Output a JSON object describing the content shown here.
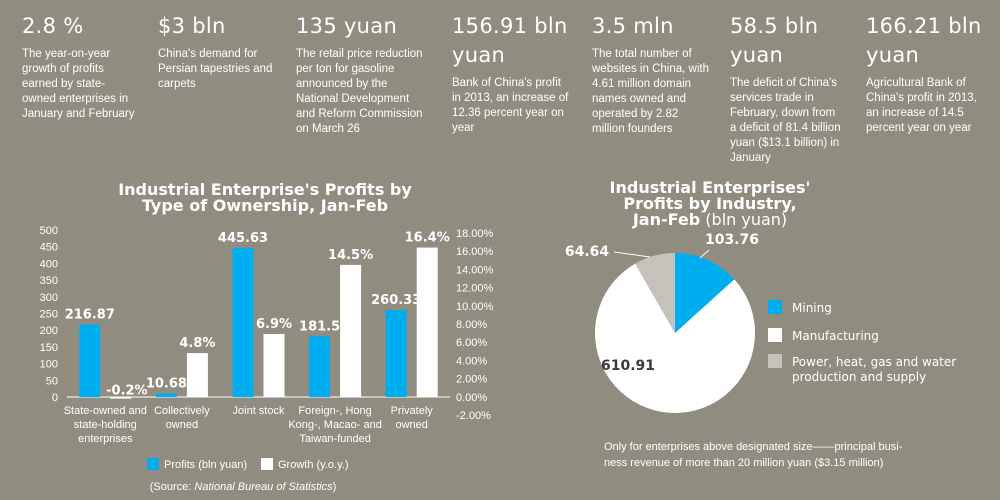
{
  "stats": [
    {
      "value": "2.8 %",
      "desc": [
        "The year-on-year",
        "growth of profits",
        "earned by state-",
        "owned enterprises in",
        "January and February"
      ]
    },
    {
      "value": "$3 bln",
      "desc": [
        "China's demand for",
        "Persian tapestries and",
        "carpets"
      ]
    },
    {
      "value": "135 yuan",
      "desc": [
        "The retail price reduction",
        "per ton for gasoline",
        "announced by the",
        "National Development",
        "and Reform Commission",
        "on March 26"
      ]
    },
    {
      "value_lines": [
        "156.91 bln",
        "yuan"
      ],
      "desc": [
        "Bank of China's profit",
        "in 2013, an increase of",
        "12.36 percent year on",
        "year"
      ]
    },
    {
      "value": "3.5 mln",
      "desc": [
        "The total number of",
        "websites in China, with",
        "4.61 million domain",
        "names owned and",
        "operated by 2.82",
        "million founders"
      ]
    },
    {
      "value_lines": [
        "58.5 bln",
        "yuan"
      ],
      "desc": [
        "The deficit of China's",
        "services trade in",
        "February, down from",
        "a deficit of 81.4 billion",
        "yuan ($13.1 billion) in",
        "January"
      ]
    },
    {
      "value_lines": [
        "166.21 bln",
        "yuan"
      ],
      "desc": [
        "Agricultural Bank of",
        "China's profit in 2013,",
        "an increase of 14.5",
        "percent year on year"
      ]
    }
  ],
  "chart_data": [
    {
      "type": "bar",
      "title_lines": [
        "Industrial Enterprise's Profits by",
        "Type of Ownership, Jan-Feb"
      ],
      "categories": [
        [
          "State-owned and",
          "state-holding",
          "enterprises"
        ],
        [
          "Collectively",
          "owned"
        ],
        [
          "Joint stock"
        ],
        [
          "Foreign-, Hong",
          "Kong-, Macao- and",
          "Taiwan-funded"
        ],
        [
          "Privately",
          "owned"
        ]
      ],
      "series": [
        {
          "name": "Profits (bln yuan)",
          "values": [
            216.87,
            10.68,
            445.63,
            181.5,
            260.33
          ],
          "labels": [
            "216.87",
            "10.68",
            "445.63",
            "181.5",
            "260.33"
          ],
          "color": "#00aeef"
        },
        {
          "name": "Growth (y.o.y.)",
          "values": [
            -0.2,
            4.8,
            6.9,
            14.5,
            16.4
          ],
          "labels": [
            "-0.2%",
            "4.8%",
            "6.9%",
            "14.5%",
            "16.4%"
          ],
          "color": "#ffffff"
        }
      ],
      "y_left": {
        "ticks": [
          0,
          50,
          100,
          150,
          200,
          250,
          300,
          350,
          400,
          450,
          500
        ],
        "ylim": [
          0,
          500
        ]
      },
      "y_right": {
        "ticks": [
          "-2.00%",
          "0.00%",
          "2.00%",
          "4.00%",
          "6.00%",
          "8.00%",
          "10.00%",
          "12.00%",
          "14.00%",
          "16.00%",
          "18.00%"
        ],
        "ylim": [
          -2,
          18
        ]
      },
      "legend": "bottom",
      "source_prefix": "(Source: ",
      "source_italic": "National Bureau of Statistics",
      "source_suffix": ")"
    },
    {
      "type": "pie",
      "title_lines": [
        "Industrial Enterprises'",
        "Profits by Industry,"
      ],
      "title_last_bold": "Jan-Feb",
      "title_last_normal": " (bln yuan)",
      "slices": [
        {
          "name": "Mining",
          "value": 103.76,
          "label": "103.76",
          "color": "#00aeef"
        },
        {
          "name_lines": [
            "Manufacturing"
          ],
          "value": 610.91,
          "label": "610.91",
          "color": "#ffffff"
        },
        {
          "name_lines": [
            "Power, heat, gas and water",
            "production and supply"
          ],
          "value": 64.64,
          "label": "64.64",
          "color": "#c4c2bb"
        }
      ],
      "note": [
        "Only for enterprises above designated size——principal busi-",
        "ness revenue of more than 20 million yuan ($3.15 million)"
      ]
    }
  ]
}
